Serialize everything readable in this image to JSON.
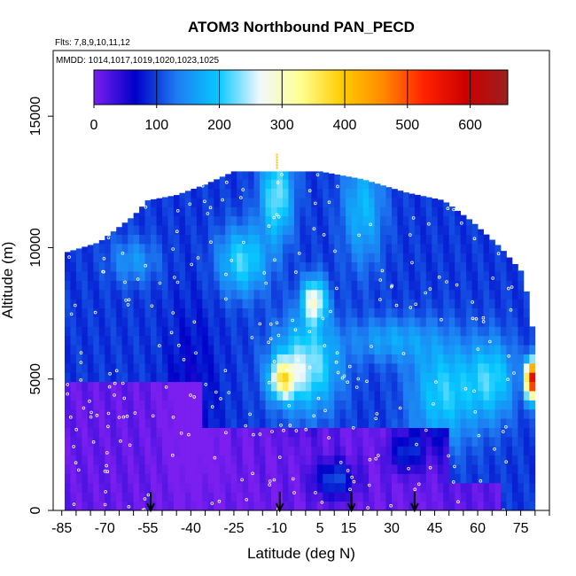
{
  "chart_data": {
    "type": "heatmap",
    "title": "ATOM3 Northbound PAN_PECD",
    "subtitle": "Flts: 7,8,9,10,11,12",
    "annotation": "MMDD: 1014,1017,1019,1020,1023,1025",
    "xlabel": "Latitude (deg N)",
    "ylabel": "Altitude (m)",
    "xlim": [
      -88,
      85
    ],
    "ylim": [
      0,
      17500
    ],
    "x_tick_labels": [
      "-85",
      "-70",
      "-55",
      "-40",
      "-25",
      "-10",
      "5",
      "15",
      "30",
      "45",
      "60",
      "75"
    ],
    "y_tick_labels": [
      "0",
      "5000",
      "10000",
      "15000"
    ],
    "colorbar": {
      "range": [
        0,
        660
      ],
      "tick_labels": [
        "0",
        "100",
        "200",
        "300",
        "400",
        "500",
        "600"
      ],
      "colors": [
        "#7a1ff0",
        "#0000c8",
        "#1e7cf2",
        "#06c8ff",
        "#f0f8ff",
        "#ffff90",
        "#ffcc00",
        "#ff8800",
        "#ff2000",
        "#cc0000",
        "#9a2020"
      ]
    },
    "profiles_arrows_lat": [
      -54,
      -9,
      16,
      38
    ],
    "grid": false
  },
  "colors": {
    "background": "#ffffff",
    "nan_fill": "#ffffff",
    "point_marker": "#ffffff",
    "arrow": "#000000",
    "peak_tick": "#ffc000"
  }
}
